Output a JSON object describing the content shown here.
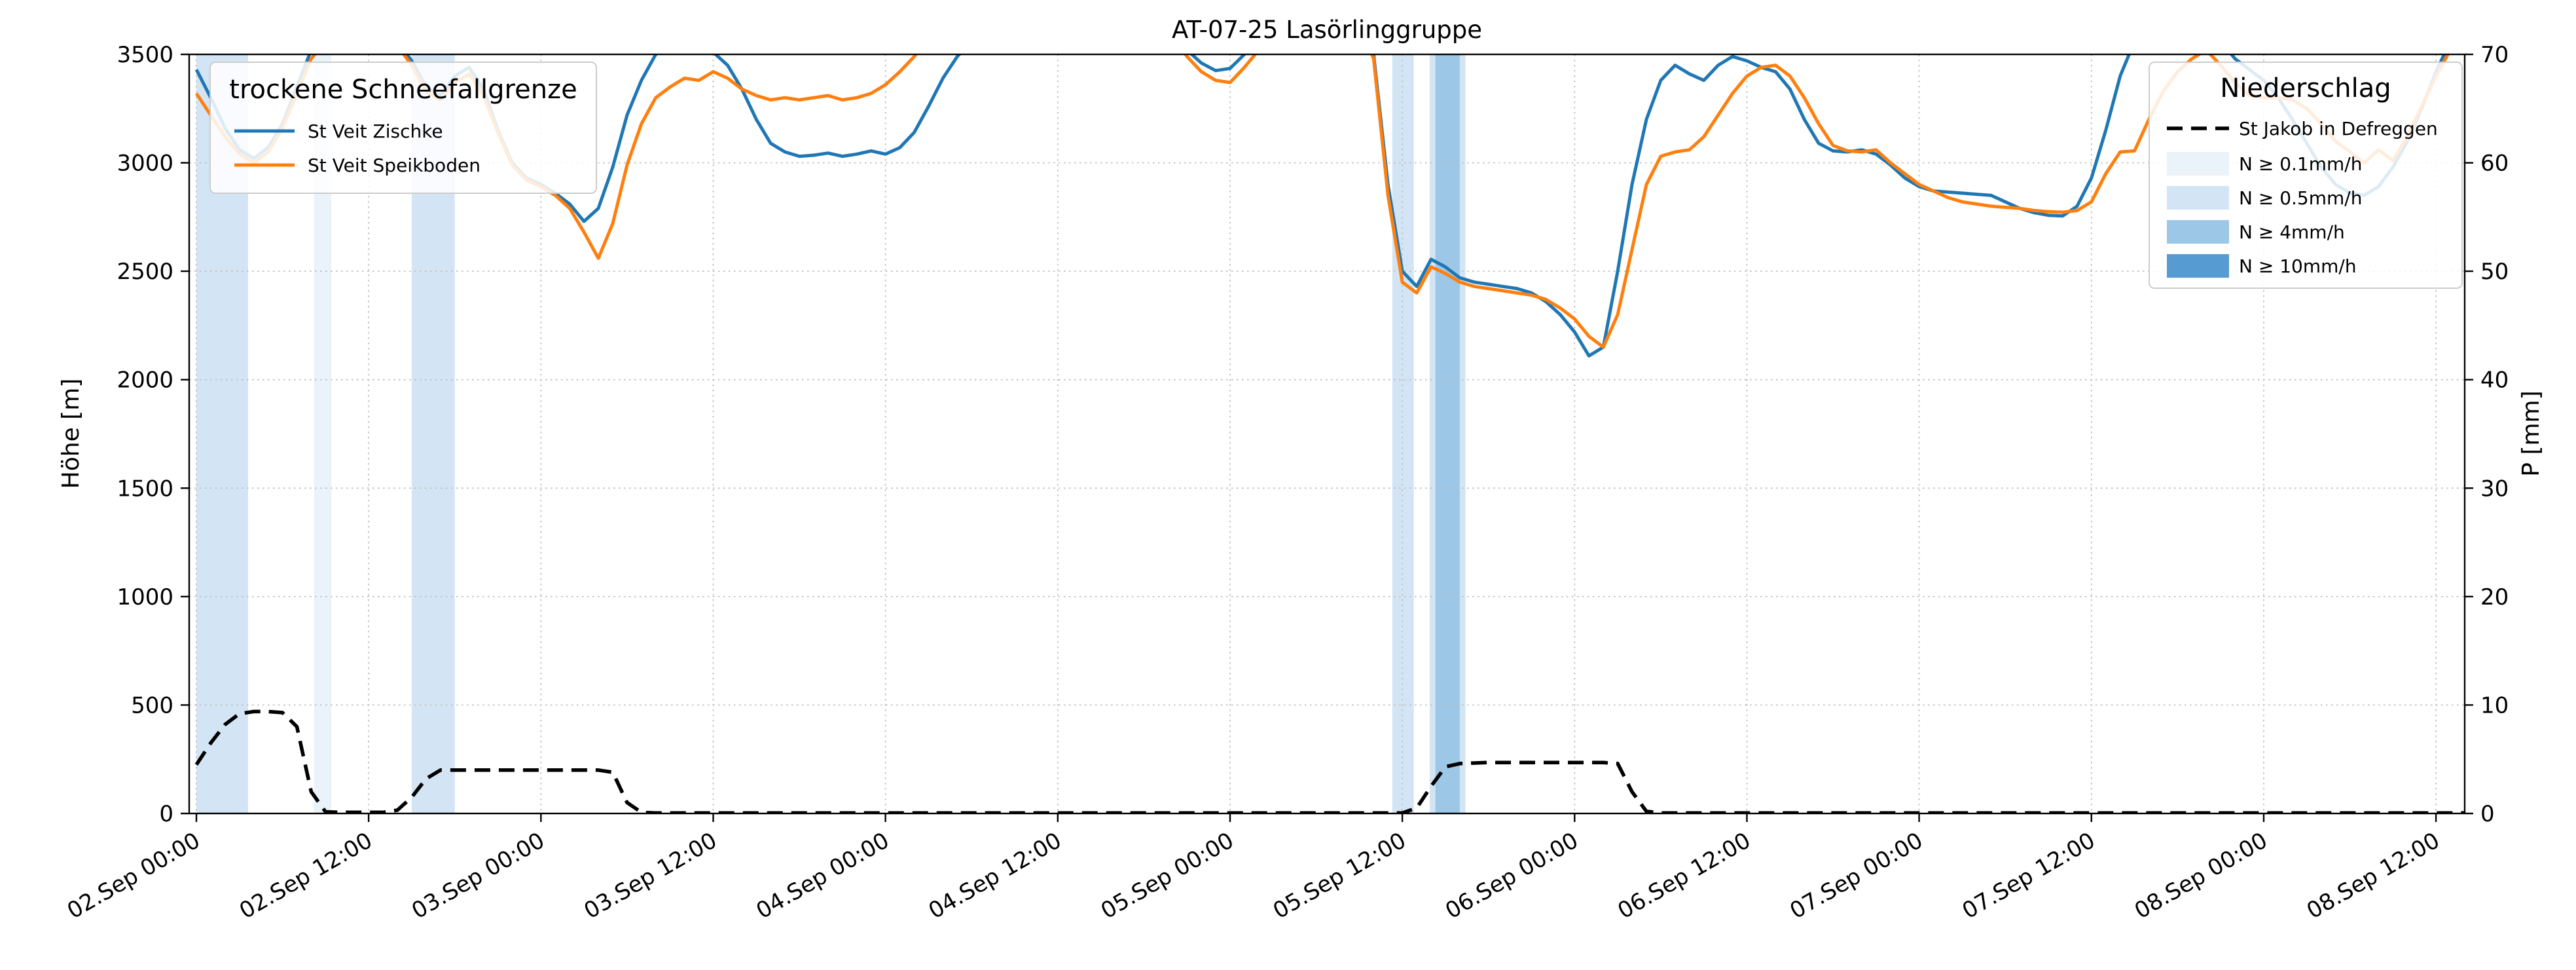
{
  "title": "AT-07-25 Lasörlinggruppe",
  "axes": {
    "y_left_label": "Höhe [m]",
    "y_right_label": "P [mm]",
    "y_left_range": [
      0,
      3500
    ],
    "y_right_range": [
      0,
      70
    ],
    "y_left_ticks": [
      0,
      500,
      1000,
      1500,
      2000,
      2500,
      3000,
      3500
    ],
    "y_right_ticks": [
      0,
      10,
      20,
      30,
      40,
      50,
      60,
      70
    ],
    "x_tick_hours": [
      0,
      12,
      24,
      36,
      48,
      60,
      72,
      84,
      96,
      108,
      120,
      132,
      144,
      156
    ],
    "x_tick_labels": [
      "02.Sep 00:00",
      "02.Sep 12:00",
      "03.Sep 00:00",
      "03.Sep 12:00",
      "04.Sep 00:00",
      "04.Sep 12:00",
      "05.Sep 00:00",
      "05.Sep 12:00",
      "06.Sep 00:00",
      "06.Sep 12:00",
      "07.Sep 00:00",
      "07.Sep 12:00",
      "08.Sep 00:00",
      "08.Sep 12:00"
    ]
  },
  "legend_snowline": {
    "title": "trockene Schneefallgrenze",
    "items": [
      {
        "label": "St Veit Zischke",
        "color": "#1f77b4"
      },
      {
        "label": "St Veit Speikboden",
        "color": "#ff7f0e"
      }
    ]
  },
  "legend_precip": {
    "title": "Niederschlag",
    "line_item": {
      "label": "St Jakob in Defreggen",
      "color": "#000000"
    },
    "band_items": [
      {
        "label": "N ≥ 0.1mm/h",
        "color": "#eaf2fa"
      },
      {
        "label": "N ≥ 0.5mm/h",
        "color": "#d3e5f4"
      },
      {
        "label": "N ≥ 4mm/h",
        "color": "#9dc7e6"
      },
      {
        "label": "N ≥ 10mm/h",
        "color": "#569cd2"
      }
    ]
  },
  "chart_data": {
    "type": "line",
    "title": "AT-07-25 Lasörlinggruppe",
    "x_unit": "hours since 02.Sep 00:00",
    "x_range_hours": [
      -0.5,
      158
    ],
    "grid": true,
    "band_colors": {
      "0.1": "#eaf2fa",
      "0.5": "#d3e5f4",
      "4": "#9dc7e6",
      "10": "#569cd2"
    },
    "precip_bands": [
      {
        "start": 0,
        "end": 3.6,
        "level": "0.5"
      },
      {
        "start": 8.2,
        "end": 9.4,
        "level": "0.1"
      },
      {
        "start": 15.0,
        "end": 18.0,
        "level": "0.5"
      },
      {
        "start": 83.3,
        "end": 84.8,
        "level": "0.5"
      },
      {
        "start": 85.9,
        "end": 88.4,
        "level": "0.5"
      },
      {
        "start": 86.3,
        "end": 88.0,
        "level": "4"
      }
    ],
    "series": [
      {
        "name": "St Veit Zischke",
        "axis": "left",
        "color": "#1f77b4",
        "style": "solid",
        "x_start": 0,
        "x_step": 1,
        "y": [
          3430,
          3300,
          3160,
          3060,
          3020,
          3070,
          3180,
          3350,
          3520,
          3600,
          3650,
          3650,
          3650,
          3620,
          3560,
          3470,
          3350,
          3310,
          3400,
          3440,
          3340,
          3150,
          3000,
          2930,
          2900,
          2860,
          2810,
          2730,
          2790,
          2980,
          3220,
          3380,
          3500,
          3580,
          3620,
          3570,
          3510,
          3450,
          3340,
          3200,
          3090,
          3050,
          3030,
          3035,
          3045,
          3030,
          3040,
          3055,
          3040,
          3070,
          3140,
          3260,
          3390,
          3490,
          3560,
          3620,
          3650,
          3650,
          3650,
          3650,
          3650,
          3650,
          3650,
          3650,
          3650,
          3650,
          3650,
          3650,
          3600,
          3520,
          3460,
          3425,
          3435,
          3500,
          3570,
          3630,
          3650,
          3650,
          3650,
          3650,
          3650,
          3640,
          3500,
          2900,
          2500,
          2430,
          2555,
          2520,
          2470,
          2450,
          2440,
          2430,
          2420,
          2400,
          2360,
          2300,
          2220,
          2110,
          2150,
          2500,
          2900,
          3200,
          3380,
          3450,
          3410,
          3380,
          3450,
          3490,
          3470,
          3440,
          3420,
          3340,
          3200,
          3090,
          3055,
          3050,
          3060,
          3040,
          2990,
          2930,
          2890,
          2870,
          2865,
          2860,
          2855,
          2850,
          2820,
          2790,
          2770,
          2758,
          2755,
          2800,
          2930,
          3150,
          3400,
          3560,
          3650,
          3650,
          3650,
          3650,
          3650,
          3560,
          3480,
          3430,
          3380,
          3300,
          3200,
          3090,
          2980,
          2900,
          2860,
          2850,
          2890,
          2980,
          3100,
          3250,
          3420,
          3560,
          3650,
          3650,
          3650,
          3650,
          3650
        ]
      },
      {
        "name": "St Veit Speikboden",
        "axis": "left",
        "color": "#ff7f0e",
        "style": "solid",
        "x_start": 0,
        "x_step": 1,
        "y": [
          3320,
          3220,
          3120,
          3040,
          3000,
          3050,
          3160,
          3320,
          3480,
          3560,
          3650,
          3650,
          3650,
          3600,
          3540,
          3450,
          3330,
          3290,
          3370,
          3410,
          3310,
          3140,
          2990,
          2920,
          2890,
          2850,
          2790,
          2680,
          2560,
          2720,
          2990,
          3180,
          3300,
          3350,
          3390,
          3380,
          3420,
          3390,
          3340,
          3310,
          3290,
          3300,
          3290,
          3300,
          3310,
          3290,
          3300,
          3320,
          3360,
          3420,
          3490,
          3570,
          3640,
          3650,
          3650,
          3650,
          3650,
          3650,
          3650,
          3650,
          3650,
          3650,
          3650,
          3650,
          3650,
          3650,
          3650,
          3650,
          3580,
          3490,
          3420,
          3380,
          3370,
          3440,
          3520,
          3600,
          3650,
          3650,
          3650,
          3650,
          3650,
          3630,
          3480,
          2850,
          2450,
          2400,
          2520,
          2490,
          2450,
          2430,
          2420,
          2410,
          2400,
          2390,
          2370,
          2330,
          2280,
          2200,
          2150,
          2300,
          2600,
          2900,
          3030,
          3050,
          3060,
          3120,
          3220,
          3320,
          3400,
          3440,
          3450,
          3400,
          3300,
          3180,
          3080,
          3055,
          3050,
          3060,
          3000,
          2950,
          2900,
          2870,
          2840,
          2820,
          2810,
          2800,
          2795,
          2790,
          2780,
          2775,
          2772,
          2780,
          2820,
          2950,
          3050,
          3055,
          3200,
          3330,
          3420,
          3480,
          3520,
          3450,
          3370,
          3310,
          3300,
          3300,
          3290,
          3250,
          3180,
          3100,
          3050,
          3000,
          3060,
          3010,
          3120,
          3260,
          3400,
          3520,
          3650,
          3650,
          3650,
          3650,
          3650
        ]
      },
      {
        "name": "St Jakob in Defreggen",
        "axis": "right",
        "color": "#000000",
        "style": "dashed",
        "x_start": 0,
        "x_step": 1,
        "y": [
          4.5,
          6.5,
          8.2,
          9.2,
          9.4,
          9.4,
          9.3,
          8.0,
          2.0,
          0.15,
          0.1,
          0.1,
          0.1,
          0.1,
          0.3,
          1.5,
          3.2,
          4.0,
          4.0,
          4.0,
          4.0,
          4.0,
          4.0,
          4.0,
          4.0,
          4.0,
          4.0,
          4.0,
          4.0,
          3.8,
          1.0,
          0.1,
          0.05,
          0.05,
          0.05,
          0.05,
          0.05,
          0.05,
          0.05,
          0.05,
          0.05,
          0.05,
          0.05,
          0.05,
          0.05,
          0.05,
          0.05,
          0.05,
          0.05,
          0.05,
          0.05,
          0.05,
          0.05,
          0.05,
          0.05,
          0.05,
          0.05,
          0.05,
          0.05,
          0.05,
          0.05,
          0.05,
          0.05,
          0.05,
          0.05,
          0.05,
          0.05,
          0.05,
          0.05,
          0.05,
          0.05,
          0.05,
          0.05,
          0.05,
          0.05,
          0.05,
          0.05,
          0.05,
          0.05,
          0.05,
          0.05,
          0.05,
          0.05,
          0.05,
          0.05,
          0.5,
          2.5,
          4.3,
          4.6,
          4.65,
          4.7,
          4.7,
          4.7,
          4.7,
          4.7,
          4.7,
          4.7,
          4.7,
          4.7,
          4.6,
          2.0,
          0.2,
          0.05,
          0.05,
          0.05,
          0.05,
          0.05,
          0.05,
          0.05,
          0.05,
          0.05,
          0.05,
          0.05,
          0.05,
          0.05,
          0.05,
          0.05,
          0.05,
          0.05,
          0.05,
          0.05,
          0.05,
          0.05,
          0.05,
          0.05,
          0.05,
          0.05,
          0.05,
          0.05,
          0.05,
          0.05,
          0.05,
          0.05,
          0.05,
          0.05,
          0.05,
          0.05,
          0.05,
          0.05,
          0.05,
          0.05,
          0.05,
          0.05,
          0.05,
          0.05,
          0.05,
          0.05,
          0.05,
          0.05,
          0.05,
          0.05,
          0.05,
          0.05,
          0.05,
          0.05,
          0.05,
          0.05,
          0.05,
          0.05,
          0.05,
          0.05,
          0.05,
          0.05
        ]
      }
    ]
  }
}
